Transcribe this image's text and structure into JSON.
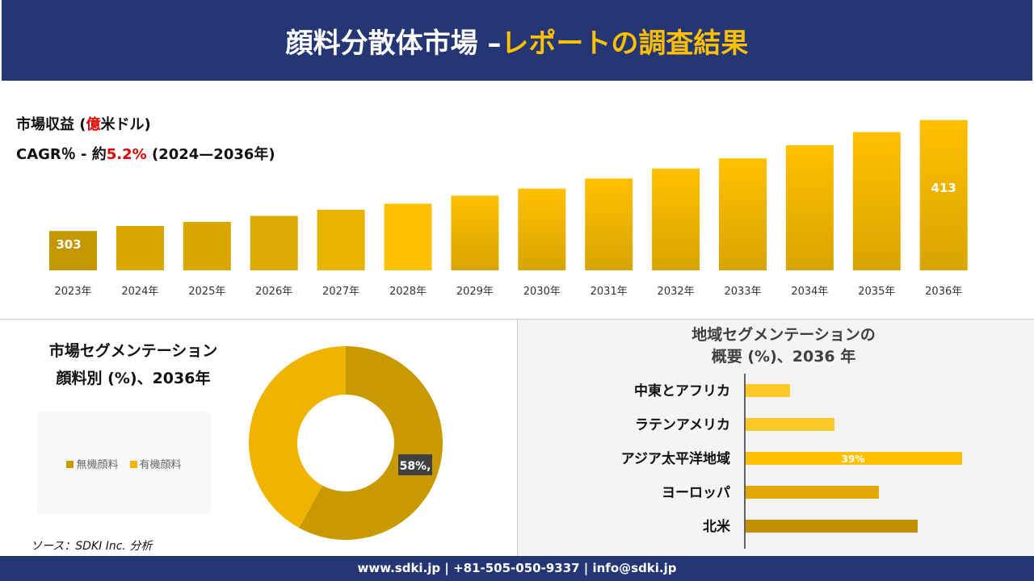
{
  "header": {
    "title_white": "顔料分散体市場 –",
    "title_yellow": "レポートの調査結果"
  },
  "info": {
    "revenue_prefix": "市場収益 (",
    "revenue_unit_red": "億",
    "revenue_suffix": "米ドル)",
    "cagr_prefix": "CAGR％ - 約",
    "cagr_value": "5.2%",
    "cagr_suffix": "(2024—2036年)"
  },
  "chart_data": [
    {
      "type": "bar",
      "categories": [
        "2023年",
        "2024年",
        "2025年",
        "2026年",
        "2027年",
        "2028年",
        "2029年",
        "2030年",
        "2031年",
        "2032年",
        "2033年",
        "2034年",
        "2035年",
        "2036年"
      ],
      "values": [
        303,
        308,
        312,
        318,
        324,
        330,
        338,
        345,
        355,
        365,
        375,
        388,
        401,
        413
      ],
      "data_labels": {
        "0": "303",
        "13": "413"
      },
      "ylim": [
        264,
        420
      ],
      "grid": false,
      "colors": [
        "#c49600",
        "#d9a700",
        "#d9a700",
        "#dcaa00",
        "#e8b400",
        "#ffc000",
        "#f5bb00",
        "#f5bb00",
        "#f5bb00",
        "#f5bb00",
        "#f5bb00",
        "#f5bb00",
        "#f5bb00",
        "#f5bb00"
      ]
    },
    {
      "type": "pie",
      "title": "市場セグメンテーション\n顔料別 (%)、2036年",
      "title_line1": "市場セグメンテーション",
      "title_line2": "顔料別 (%)、2036年",
      "series": [
        {
          "name": "無機顔料",
          "value": 58,
          "color": "#c89a00"
        },
        {
          "name": "有機顔料",
          "value": 42,
          "color": "#f0b400"
        }
      ],
      "data_label": "58%,",
      "legend": "left"
    },
    {
      "type": "bar",
      "orientation": "horizontal",
      "title_line1": "地域セグメンテーションの",
      "title_line2": "概要 (%)、2036 年",
      "categories": [
        "中東とアフリカ",
        "ラテンアメリカ",
        "アジア太平洋地域",
        "ヨーロッパ",
        "北米"
      ],
      "values": [
        8,
        16,
        39,
        24,
        31
      ],
      "data_labels": {
        "2": "39%"
      },
      "colors": [
        "#ffc82a",
        "#ffc82a",
        "#ffc000",
        "#e0a800",
        "#c29000"
      ]
    }
  ],
  "source": "ソース：SDKI Inc. 分析",
  "footer": "www.sdki.jp | +81-505-050-9337 | info@sdki.jp"
}
